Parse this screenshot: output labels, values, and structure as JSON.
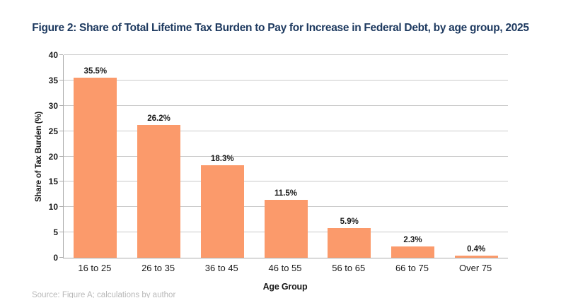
{
  "figure": {
    "title": "Figure 2: Share of Total Lifetime Tax Burden to Pay for Increase in Federal Debt, by age group, 2025",
    "source_note": "Source: Figure A; calculations by author"
  },
  "chart_data": {
    "type": "bar",
    "title": "Figure 2: Share of Total Lifetime Tax Burden to Pay for Increase in Federal Debt, by age group, 2025",
    "categories": [
      "16 to 25",
      "26 to 35",
      "36 to 45",
      "46 to 55",
      "56 to 65",
      "66 to 75",
      "Over 75"
    ],
    "values": [
      35.5,
      26.2,
      18.3,
      11.5,
      5.9,
      2.3,
      0.4
    ],
    "value_labels": [
      "35.5%",
      "26.2%",
      "18.3%",
      "11.5%",
      "5.9%",
      "2.3%",
      "0.4%"
    ],
    "xlabel": "Age Group",
    "ylabel": "Share of Tax Burden (%)",
    "ylim": [
      0,
      40
    ],
    "yticks": [
      0,
      5,
      10,
      15,
      20,
      25,
      30,
      35,
      40
    ],
    "grid": true,
    "legend_position": "none",
    "colors": {
      "bar": "#FB9A6B",
      "title": "#1E3A60",
      "grid": "#C9C9C9",
      "axis": "#ABABAB",
      "text": "#1A1A1A",
      "source": "#B9B9B9"
    }
  }
}
